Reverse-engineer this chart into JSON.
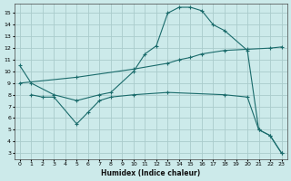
{
  "xlabel": "Humidex (Indice chaleur)",
  "bg_color": "#cceaea",
  "grid_color": "#aacccc",
  "line_color": "#1a6b6b",
  "xlim": [
    -0.5,
    23.5
  ],
  "ylim": [
    2.5,
    15.8
  ],
  "xticks": [
    0,
    1,
    2,
    3,
    4,
    5,
    6,
    7,
    8,
    9,
    10,
    11,
    12,
    13,
    14,
    15,
    16,
    17,
    18,
    19,
    20,
    21,
    22,
    23
  ],
  "yticks": [
    3,
    4,
    5,
    6,
    7,
    8,
    9,
    10,
    11,
    12,
    13,
    14,
    15
  ],
  "line1_x": [
    0,
    1,
    3,
    5,
    7,
    8,
    10,
    11,
    12,
    13,
    14,
    15,
    16,
    17,
    18,
    20,
    21,
    22,
    23
  ],
  "line1_y": [
    10.5,
    9.0,
    8.0,
    7.5,
    8.0,
    8.2,
    10.0,
    11.5,
    12.2,
    15.0,
    15.5,
    15.5,
    15.2,
    14.0,
    13.5,
    11.8,
    5.0,
    4.5,
    3.0
  ],
  "line2_x": [
    0,
    5,
    10,
    13,
    14,
    15,
    16,
    18,
    20,
    22,
    23
  ],
  "line2_y": [
    9.0,
    9.5,
    10.2,
    10.7,
    11.0,
    11.2,
    11.5,
    11.8,
    11.9,
    12.0,
    12.1
  ],
  "line3_x": [
    1,
    2,
    3,
    5,
    6,
    7,
    8,
    10,
    13,
    18,
    20,
    21,
    22,
    23
  ],
  "line3_y": [
    8.0,
    7.8,
    7.8,
    5.5,
    6.5,
    7.5,
    7.8,
    8.0,
    8.2,
    8.0,
    7.8,
    5.0,
    4.5,
    3.0
  ]
}
